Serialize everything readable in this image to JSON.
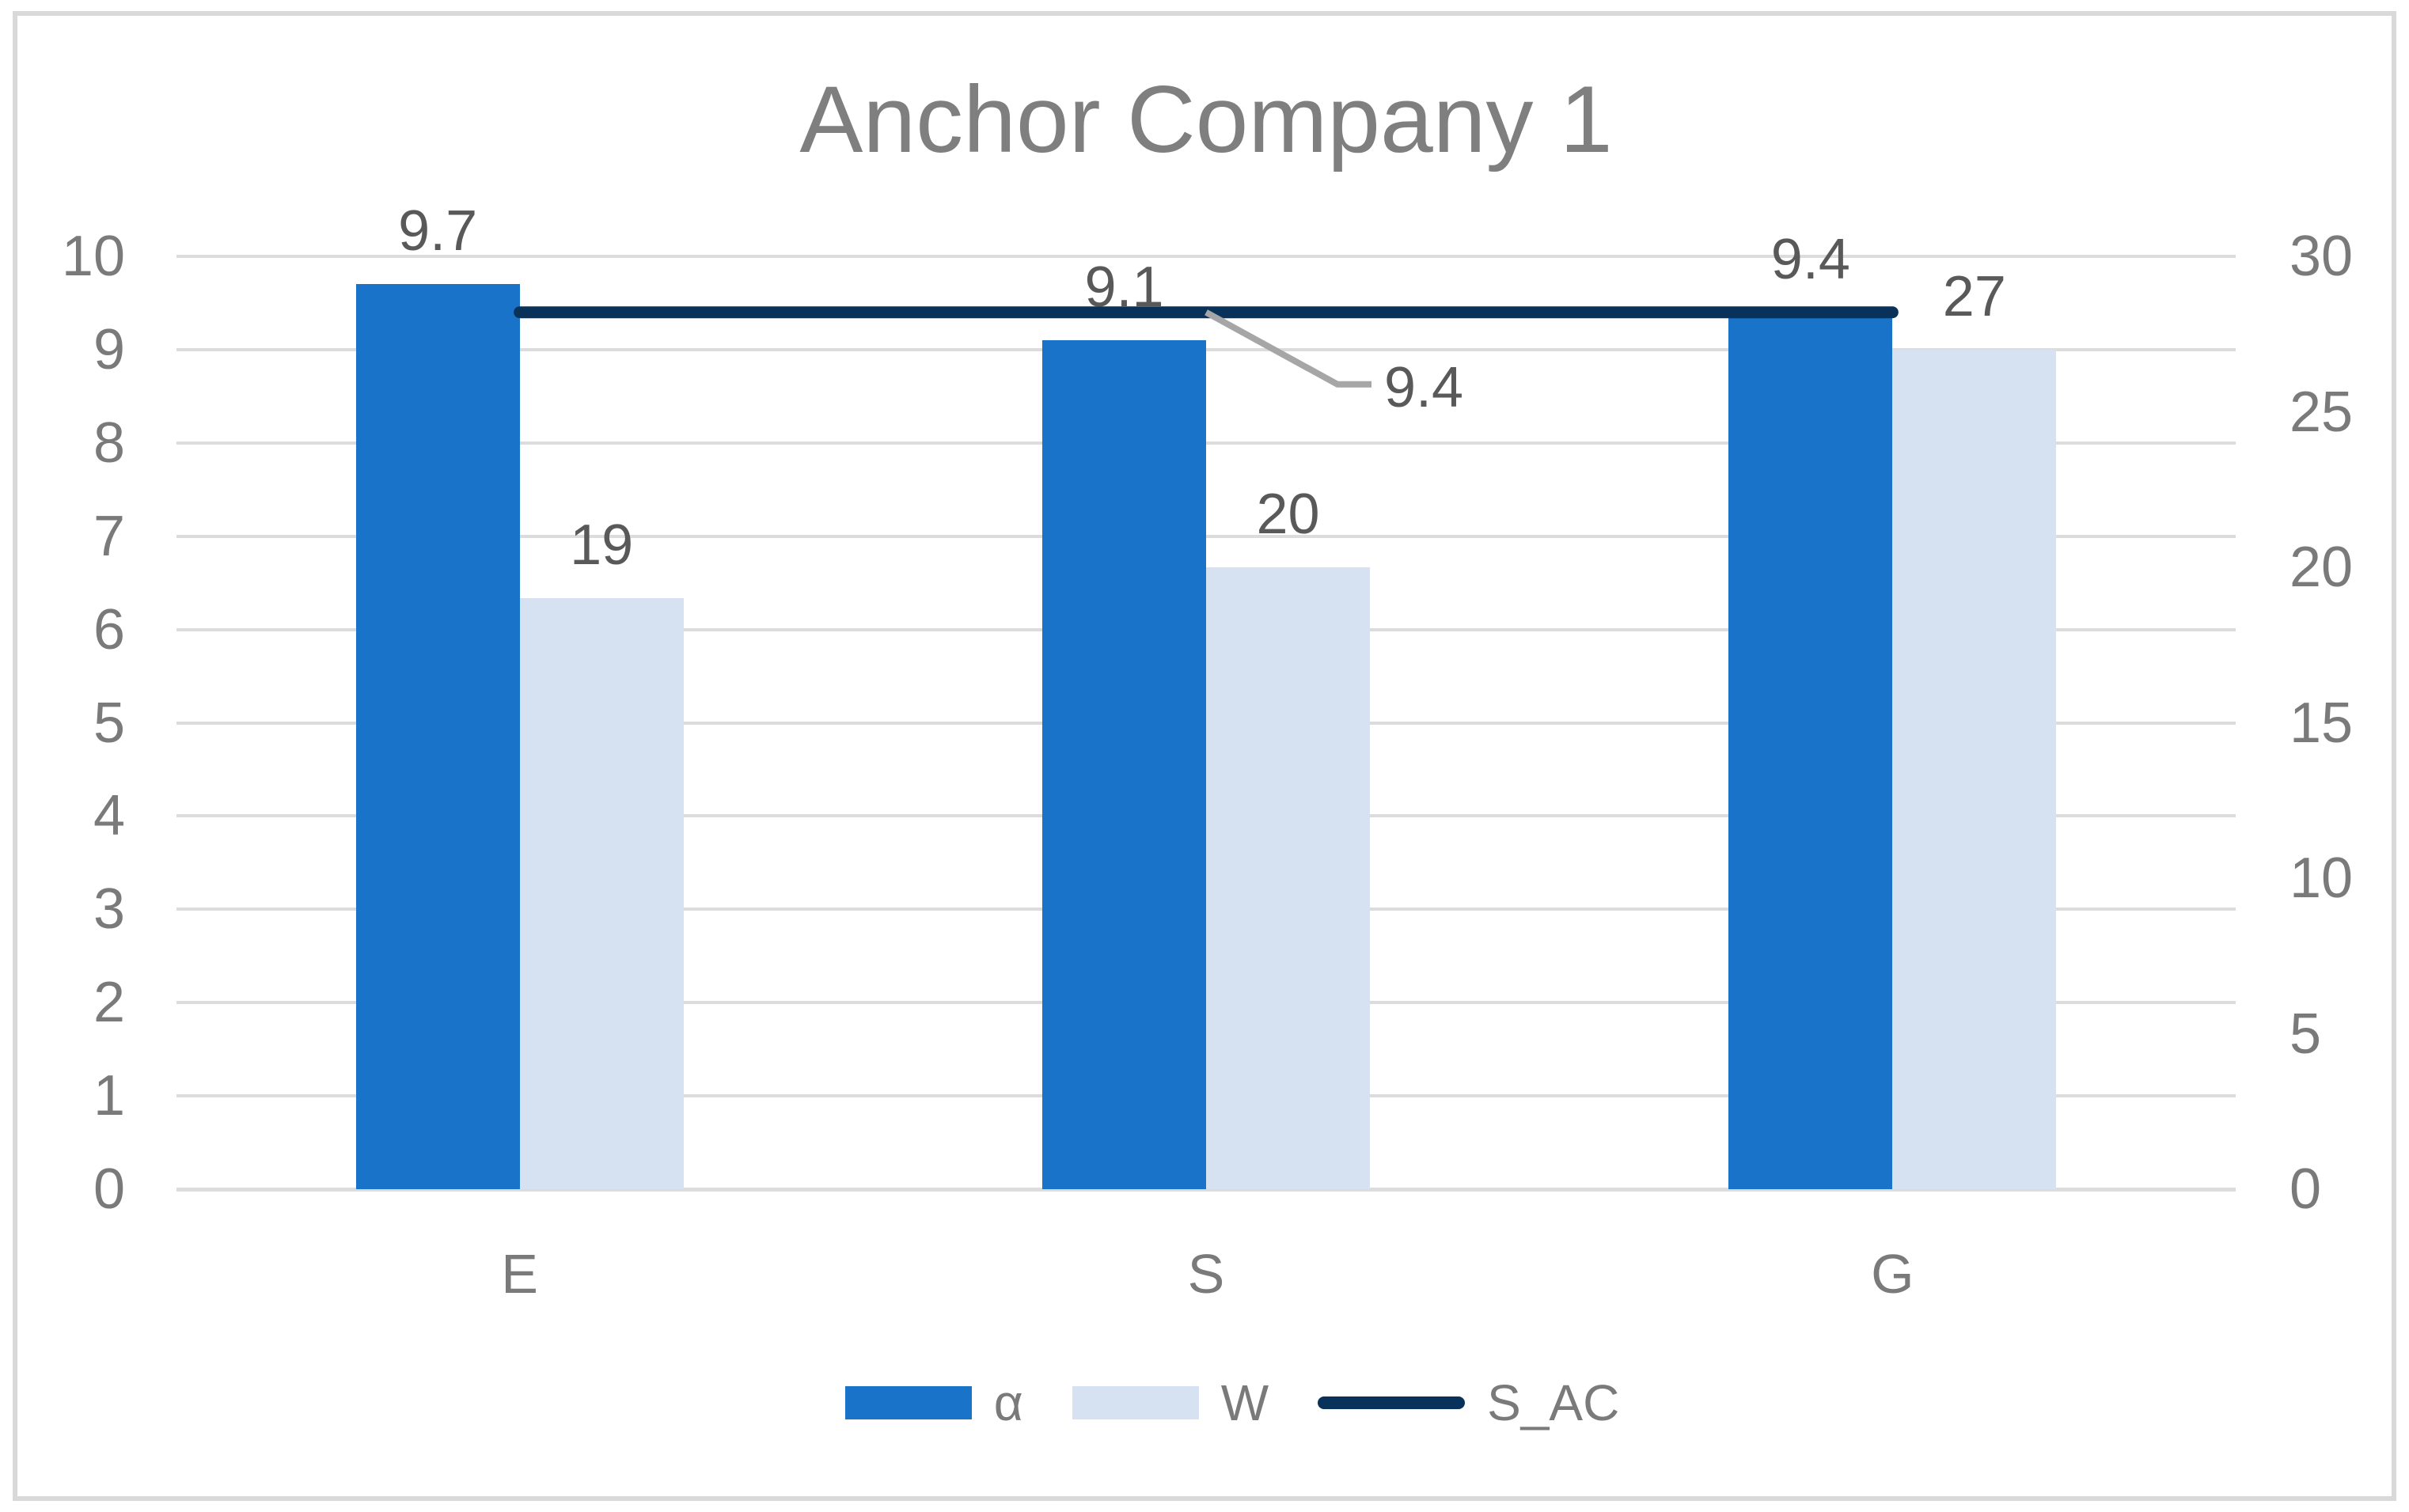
{
  "title": "Anchor Company 1",
  "colors": {
    "bar_alpha": "#1873C9",
    "bar_w": "#D6E2F2",
    "line_sac": "#08325A",
    "gridline": "#DCDCDC",
    "axis_text": "#7A7A7A",
    "data_label_text": "#595959",
    "title_text": "#7F7F7F",
    "leader_line": "#A6A6A6",
    "frame_border": "#D9D9D9"
  },
  "chart_data": {
    "type": "bar",
    "subtype": "combo-bar-line-dual-axis",
    "title": "Anchor Company 1",
    "categories": [
      "E",
      "S",
      "G"
    ],
    "series": [
      {
        "name": "α",
        "type": "bar",
        "axis": "left",
        "values": [
          9.7,
          9.1,
          9.4
        ],
        "labels": [
          "9.7",
          "9.1",
          "9.4"
        ],
        "color": "#1873C9"
      },
      {
        "name": "W",
        "type": "bar",
        "axis": "right",
        "values": [
          19,
          20,
          27
        ],
        "labels": [
          "19",
          "20",
          "27"
        ],
        "color": "#D6E2F2"
      },
      {
        "name": "S_AC",
        "type": "line",
        "axis": "left",
        "values": [
          9.4,
          9.4,
          9.4
        ],
        "labels": [],
        "color": "#08325A"
      }
    ],
    "left_axis": {
      "min": 0,
      "max": 10,
      "ticks": [
        "10",
        "9",
        "8",
        "7",
        "6",
        "5",
        "4",
        "3",
        "2",
        "1",
        "0"
      ]
    },
    "right_axis": {
      "min": 0,
      "max": 30,
      "ticks": [
        "30",
        "25",
        "20",
        "15",
        "10",
        "5",
        "0"
      ]
    },
    "annotation": {
      "text": "9.4",
      "series": "S_AC",
      "category_index": 1
    },
    "legend": [
      {
        "label": "α",
        "swatch": "bar",
        "color": "#1873C9"
      },
      {
        "label": "W",
        "swatch": "bar",
        "color": "#D6E2F2"
      },
      {
        "label": "S_AC",
        "swatch": "line",
        "color": "#08325A"
      }
    ],
    "grid": true,
    "legend_position": "bottom"
  }
}
